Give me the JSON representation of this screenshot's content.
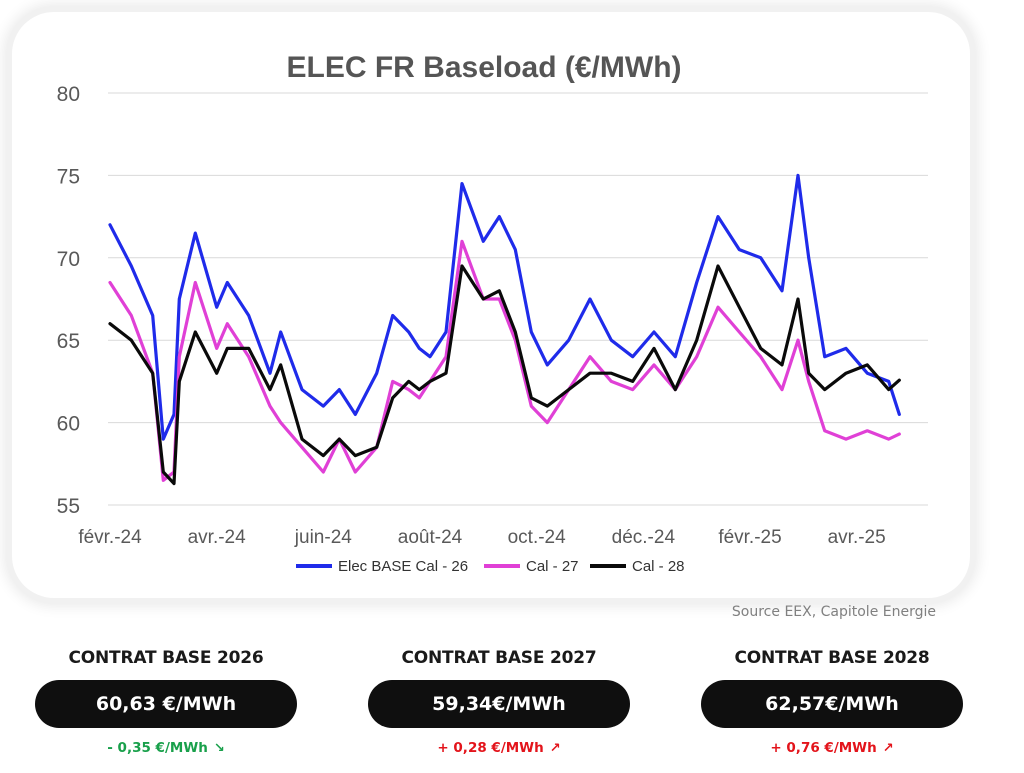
{
  "chart_data": {
    "type": "line",
    "title": "ELEC FR Baseload (€/MWh)",
    "xlabel": "",
    "ylabel": "",
    "ylim": [
      55,
      80
    ],
    "yticks": [
      55,
      60,
      65,
      70,
      75,
      80
    ],
    "x_tick_labels": [
      "févr.-24",
      "avr.-24",
      "juin-24",
      "août-24",
      "oct.-24",
      "déc.-24",
      "févr.-25",
      "avr.-25"
    ],
    "x_range_months": [
      0,
      15
    ],
    "x": [
      0.0,
      0.4,
      0.8,
      1.0,
      1.2,
      1.3,
      1.6,
      2.0,
      2.2,
      2.6,
      3.0,
      3.2,
      3.6,
      4.0,
      4.3,
      4.6,
      5.0,
      5.3,
      5.6,
      5.8,
      6.0,
      6.3,
      6.6,
      7.0,
      7.3,
      7.6,
      7.9,
      8.2,
      8.6,
      9.0,
      9.4,
      9.8,
      10.2,
      10.6,
      11.0,
      11.4,
      11.8,
      12.2,
      12.6,
      12.9,
      13.1,
      13.4,
      13.8,
      14.2,
      14.6,
      14.8
    ],
    "series": [
      {
        "name": "Elec BASE Cal - 26",
        "color": "#1f2bea",
        "values": [
          72.0,
          69.5,
          66.5,
          59.0,
          60.5,
          67.5,
          71.5,
          67.0,
          68.5,
          66.5,
          63.0,
          65.5,
          62.0,
          61.0,
          62.0,
          60.5,
          63.0,
          66.5,
          65.5,
          64.5,
          64.0,
          65.5,
          74.5,
          71.0,
          72.5,
          70.5,
          65.5,
          63.5,
          65.0,
          67.5,
          65.0,
          64.0,
          65.5,
          64.0,
          68.5,
          72.5,
          70.5,
          70.0,
          68.0,
          75.0,
          70.0,
          64.0,
          64.5,
          63.0,
          62.5,
          60.5
        ]
      },
      {
        "name": "Cal - 27",
        "color": "#e040d6",
        "values": [
          68.5,
          66.5,
          63.0,
          56.5,
          57.0,
          64.0,
          68.5,
          64.5,
          66.0,
          64.0,
          61.0,
          60.0,
          58.5,
          57.0,
          59.0,
          57.0,
          58.5,
          62.5,
          62.0,
          61.5,
          62.5,
          64.0,
          71.0,
          67.5,
          67.5,
          65.0,
          61.0,
          60.0,
          62.0,
          64.0,
          62.5,
          62.0,
          63.5,
          62.0,
          64.0,
          67.0,
          65.5,
          64.0,
          62.0,
          65.0,
          62.5,
          59.5,
          59.0,
          59.5,
          59.0,
          59.3
        ]
      },
      {
        "name": "Cal - 28",
        "color": "#0a0a0a",
        "values": [
          66.0,
          65.0,
          63.0,
          57.0,
          56.3,
          62.5,
          65.5,
          63.0,
          64.5,
          64.5,
          62.0,
          63.5,
          59.0,
          58.0,
          59.0,
          58.0,
          58.5,
          61.5,
          62.5,
          62.0,
          62.5,
          63.0,
          69.5,
          67.5,
          68.0,
          65.5,
          61.5,
          61.0,
          62.0,
          63.0,
          63.0,
          62.5,
          64.5,
          62.0,
          65.0,
          69.5,
          67.0,
          64.5,
          63.5,
          67.5,
          63.0,
          62.0,
          63.0,
          63.5,
          62.0,
          62.57
        ]
      }
    ],
    "legend": "bottom-center"
  },
  "source": "Source EEX, Capitole Energie",
  "contracts": [
    {
      "label": "CONTRAT BASE 2026",
      "price": "60,63 €/MWh",
      "change": "- 0,35 €/MWh",
      "direction": "down",
      "arrow": "↘"
    },
    {
      "label": "CONTRAT BASE 2027",
      "price": "59,34€/MWh",
      "change": "+ 0,28 €/MWh",
      "direction": "up",
      "arrow": "↗"
    },
    {
      "label": "CONTRAT BASE 2028",
      "price": "62,57€/MWh",
      "change": "+ 0,76 €/MWh",
      "direction": "up",
      "arrow": "↗"
    }
  ],
  "colors": {
    "up": "#e3141b",
    "down": "#19a04b",
    "pill": "#0f0f0f"
  }
}
